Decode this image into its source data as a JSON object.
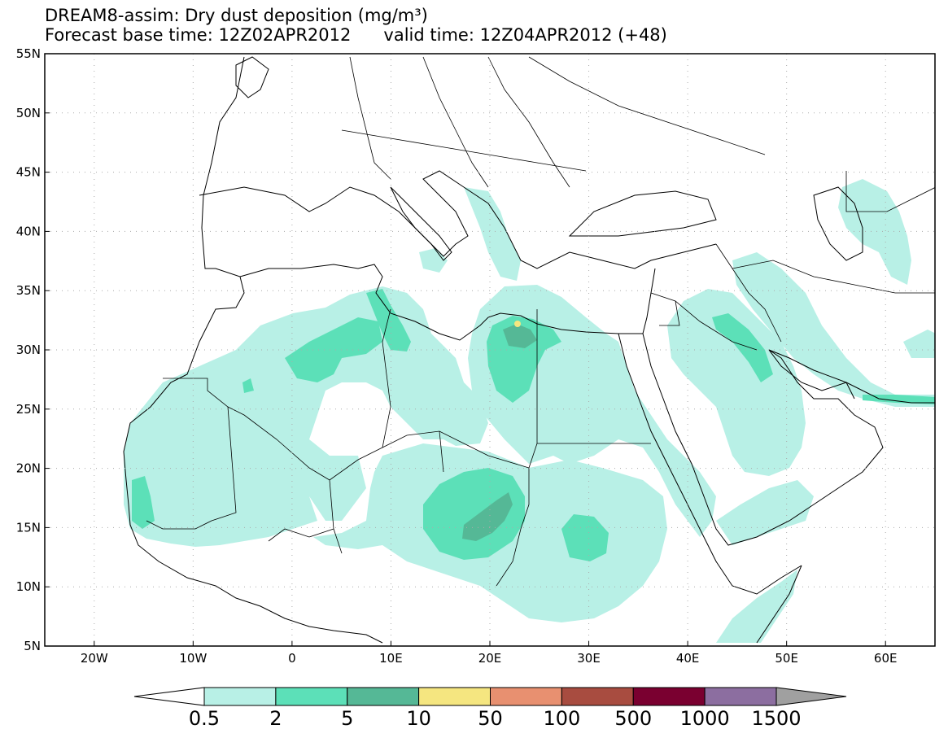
{
  "title": {
    "line1": "DREAM8-assim: Dry dust deposition (mg/m³)",
    "base_time": "Forecast base time: 12Z02APR2012",
    "valid_time": "valid time: 12Z04APR2012 (+48)"
  },
  "map": {
    "lon_range": [
      -25,
      65
    ],
    "lat_range": [
      5,
      55
    ],
    "lat_ticks": [
      {
        "value": 55,
        "label": "55N"
      },
      {
        "value": 50,
        "label": "50N"
      },
      {
        "value": 45,
        "label": "45N"
      },
      {
        "value": 40,
        "label": "40N"
      },
      {
        "value": 35,
        "label": "35N"
      },
      {
        "value": 30,
        "label": "30N"
      },
      {
        "value": 25,
        "label": "25N"
      },
      {
        "value": 20,
        "label": "20N"
      },
      {
        "value": 15,
        "label": "15N"
      },
      {
        "value": 10,
        "label": "10N"
      },
      {
        "value": 5,
        "label": "5N"
      }
    ],
    "lon_ticks": [
      {
        "value": -20,
        "label": "20W"
      },
      {
        "value": -10,
        "label": "10W"
      },
      {
        "value": 0,
        "label": "0"
      },
      {
        "value": 10,
        "label": "10E"
      },
      {
        "value": 20,
        "label": "20E"
      },
      {
        "value": 30,
        "label": "30E"
      },
      {
        "value": 40,
        "label": "40E"
      },
      {
        "value": 50,
        "label": "50E"
      },
      {
        "value": 60,
        "label": "60E"
      }
    ],
    "grid": true
  },
  "colorbar": {
    "labels": [
      "0.5",
      "2",
      "5",
      "10",
      "50",
      "100",
      "500",
      "1000",
      "1500"
    ],
    "colors": [
      "#ffffff",
      "#b8f0e6",
      "#5ce0b8",
      "#55b896",
      "#f5e680",
      "#e89070",
      "#a84c40",
      "#7a0030",
      "#8c6ea0",
      "#a0a0a0"
    ]
  },
  "colors": {
    "level_0_5": "#b8f0e6",
    "level_2": "#5ce0b8",
    "level_5": "#55b896",
    "level_10": "#f5e680"
  }
}
